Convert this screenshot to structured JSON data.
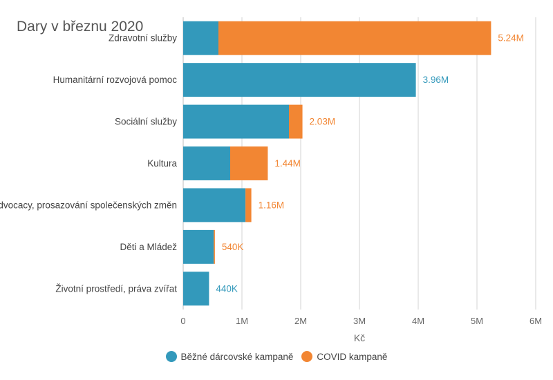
{
  "chart_data": {
    "type": "bar",
    "orientation": "horizontal",
    "stacked": true,
    "title": "Dary v březnu 2020",
    "xlabel": "Kč",
    "ylabel": "",
    "xlim": [
      0,
      6000000
    ],
    "x_ticks": [
      0,
      1000000,
      2000000,
      3000000,
      4000000,
      5000000,
      6000000
    ],
    "x_tick_labels": [
      "0",
      "1M",
      "2M",
      "3M",
      "4M",
      "5M",
      "6M"
    ],
    "grid": true,
    "legend_position": "bottom",
    "categories": [
      "Zdravotní služby",
      "Humanitární rozvojová pomoc",
      "Sociální služby",
      "Kultura",
      "Advocacy, prosazování společenských změn",
      "Děti a Mládež",
      "Životní prostředí, práva zvířat"
    ],
    "series": [
      {
        "name": "Běžné dárcovské kampaně",
        "color": "#3399bb",
        "values": [
          600000,
          3960000,
          1800000,
          800000,
          1060000,
          520000,
          440000
        ]
      },
      {
        "name": "COVID kampaně",
        "color": "#f28633",
        "values": [
          4640000,
          0,
          230000,
          640000,
          100000,
          20000,
          0
        ]
      }
    ],
    "total_labels": [
      "5.24M",
      "3.96M",
      "2.03M",
      "1.44M",
      "1.16M",
      "540K",
      "440K"
    ],
    "total_label_colors": [
      "#f28633",
      "#3399bb",
      "#f28633",
      "#f28633",
      "#f28633",
      "#f28633",
      "#3399bb"
    ]
  }
}
